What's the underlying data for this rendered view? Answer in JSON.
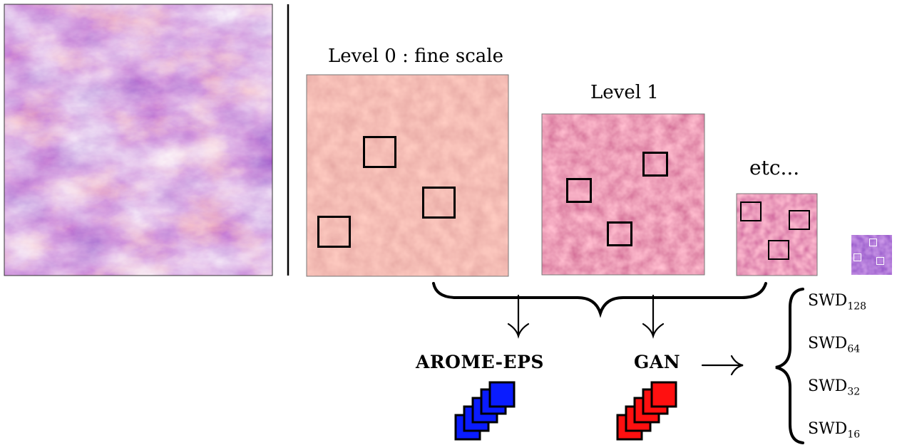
{
  "labels": {
    "level0": "Level 0 : fine scale",
    "level1": "Level 1",
    "etc": "etc...",
    "arome": "AROME-EPS",
    "gan": "GAN"
  },
  "swd": [
    {
      "base": "SWD",
      "sub": "128"
    },
    {
      "base": "SWD",
      "sub": "64"
    },
    {
      "base": "SWD",
      "sub": "32"
    },
    {
      "base": "SWD",
      "sub": "16"
    }
  ],
  "colors": {
    "arome_stack": "#0a1cff",
    "gan_stack": "#ff1010",
    "laplacian_base": "#e07a78",
    "field_dark": "#2a1070",
    "field_bright": "#f7b234"
  }
}
